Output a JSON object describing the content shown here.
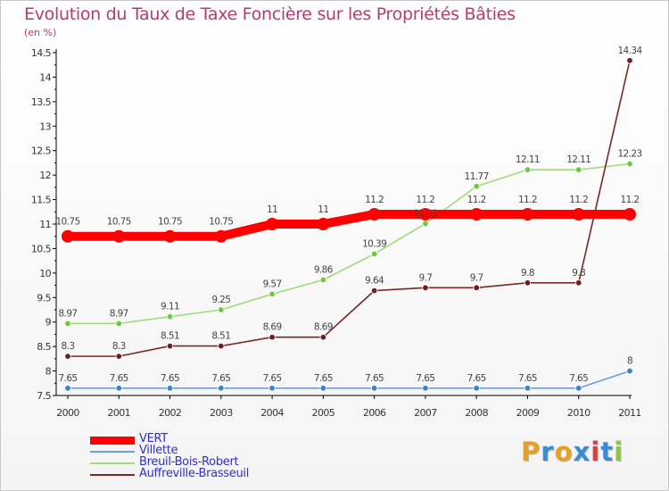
{
  "title": "Evolution du Taux de Taxe Foncière sur les Propriétés Bâties",
  "unit": "(en %)",
  "logo": {
    "text": "Proxiti",
    "colors": [
      "#e8a020",
      "#3c8cd2",
      "#e8a020",
      "#3c8cd2",
      "#e03c3c",
      "#3c8cd2",
      "#8cc83c"
    ]
  },
  "chart_data": {
    "type": "line",
    "x": [
      "2000",
      "2001",
      "2002",
      "2003",
      "2004",
      "2005",
      "2006",
      "2007",
      "2008",
      "2009",
      "2010",
      "2011"
    ],
    "ylim": [
      7.5,
      14.5
    ],
    "yticks": [
      "7.5",
      "8",
      "8.5",
      "9",
      "9.5",
      "10",
      "10.5",
      "11",
      "11.5",
      "12",
      "12.5",
      "13",
      "13.5",
      "14",
      "14.5"
    ],
    "grid": false,
    "legend_position": "bottom-left",
    "series": [
      {
        "name": "VERT",
        "color": "#ff0000",
        "point_color": "#ff0000",
        "values": [
          10.75,
          10.75,
          10.75,
          10.75,
          11,
          11,
          11.2,
          11.2,
          11.2,
          11.2,
          11.2,
          11.2
        ],
        "labels": [
          "10.75",
          "10.75",
          "10.75",
          "10.75",
          "11",
          "11",
          "11.2",
          "11.2",
          "11.2",
          "11.2",
          "11.2",
          "11.2"
        ]
      },
      {
        "name": "Villette",
        "color": "#6ea0d2",
        "point_color": "#3c82c8",
        "values": [
          7.65,
          7.65,
          7.65,
          7.65,
          7.65,
          7.65,
          7.65,
          7.65,
          7.65,
          7.65,
          7.65,
          8
        ],
        "labels": [
          "7.65",
          "7.65",
          "7.65",
          "7.65",
          "7.65",
          "7.65",
          "7.65",
          "7.65",
          "7.65",
          "7.65",
          "7.65",
          "8"
        ]
      },
      {
        "name": "Breuil-Bois-Robert",
        "color": "#a0dc78",
        "point_color": "#6cc83c",
        "values": [
          8.97,
          8.97,
          9.11,
          9.25,
          9.57,
          9.86,
          10.39,
          11.01,
          11.77,
          12.11,
          12.11,
          12.23
        ],
        "labels": [
          "8.97",
          "8.97",
          "9.11",
          "9.25",
          "9.57",
          "9.86",
          "10.39",
          "11.01",
          "11.77",
          "12.11",
          "12.11",
          "12.23"
        ]
      },
      {
        "name": "Auffreville-Brasseuil",
        "color": "#7a2828",
        "point_color": "#6e1e1e",
        "values": [
          8.3,
          8.3,
          8.51,
          8.51,
          8.69,
          8.69,
          9.64,
          9.7,
          9.7,
          9.8,
          9.8,
          14.34
        ],
        "labels": [
          "8.3",
          "8.3",
          "8.51",
          "8.51",
          "8.69",
          "8.69",
          "9.64",
          "9.7",
          "9.7",
          "9.8",
          "9.8",
          "14.34"
        ]
      }
    ]
  }
}
